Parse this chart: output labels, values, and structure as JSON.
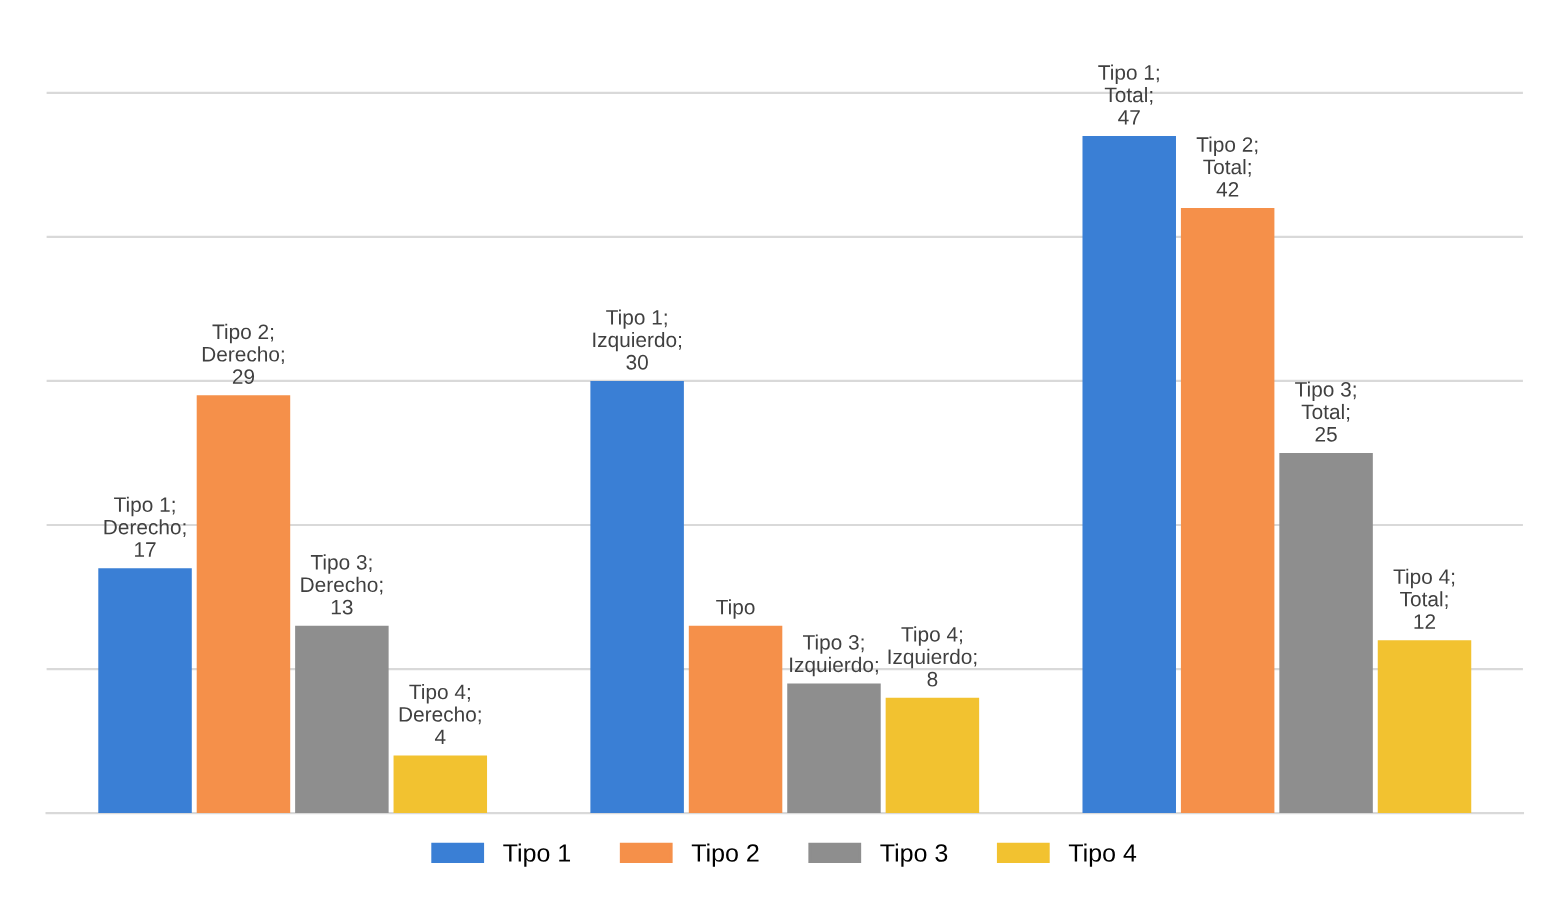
{
  "chart_data": {
    "type": "bar",
    "categories": [
      null,
      null,
      null
    ],
    "series": [
      {
        "name": "Tipo 1",
        "color": "#3a7fd5",
        "values": [
          17,
          30,
          47
        ],
        "value_labels": [
          "Tipo 1; Derecho; 17",
          "Tipo 1; Izquierdo; 30",
          "Tipo 1; Total; 47"
        ]
      },
      {
        "name": "Tipo 2",
        "color": "#f5904a",
        "values": [
          29,
          13,
          42
        ],
        "value_labels": [
          "Tipo 2; Derecho; 29",
          "Tipo",
          "Tipo 2; Total; 42"
        ]
      },
      {
        "name": "Tipo 3",
        "color": "#8e8e8e",
        "values": [
          13,
          9,
          25
        ],
        "value_labels": [
          "Tipo 3; Derecho; 13",
          "Tipo 3; Izquierdo;",
          "Tipo 3; Total; 25"
        ]
      },
      {
        "name": "Tipo 4",
        "color": "#f2c230",
        "values": [
          4,
          8,
          12
        ],
        "value_labels": [
          "Tipo 4; Derecho; 4",
          "Tipo 4; Izquierdo; 8",
          "Tipo 4; Total; 12"
        ]
      }
    ],
    "grid": "y",
    "legend": "bottom"
  }
}
